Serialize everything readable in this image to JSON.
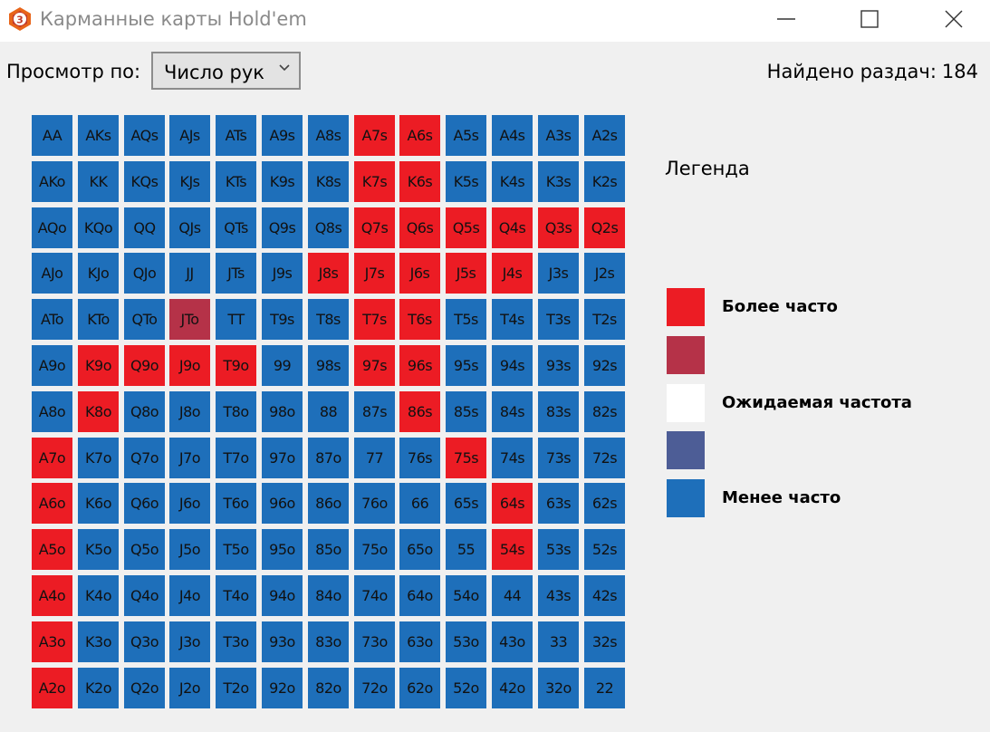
{
  "window": {
    "title": "Карманные карты Hold'em",
    "icon": "app-logo-icon",
    "controls": [
      "minimize-icon",
      "maximize-icon",
      "close-icon"
    ]
  },
  "toolbar": {
    "view_label": "Просмотр по:",
    "view_value": "Число рук",
    "found_label": "Найдено раздач:",
    "found_count": "184"
  },
  "colors": {
    "more": "#ec1c24",
    "more_mid": "#b53248",
    "expected": "#ffffff",
    "less_mid": "#4d5d96",
    "less": "#1e6fba"
  },
  "grid": {
    "rows": [
      [
        "AA",
        "AKs",
        "AQs",
        "AJs",
        "ATs",
        "A9s",
        "A8s",
        "A7s",
        "A6s",
        "A5s",
        "A4s",
        "A3s",
        "A2s"
      ],
      [
        "AKo",
        "KK",
        "KQs",
        "KJs",
        "KTs",
        "K9s",
        "K8s",
        "K7s",
        "K6s",
        "K5s",
        "K4s",
        "K3s",
        "K2s"
      ],
      [
        "AQo",
        "KQo",
        "QQ",
        "QJs",
        "QTs",
        "Q9s",
        "Q8s",
        "Q7s",
        "Q6s",
        "Q5s",
        "Q4s",
        "Q3s",
        "Q2s"
      ],
      [
        "AJo",
        "KJo",
        "QJo",
        "JJ",
        "JTs",
        "J9s",
        "J8s",
        "J7s",
        "J6s",
        "J5s",
        "J4s",
        "J3s",
        "J2s"
      ],
      [
        "ATo",
        "KTo",
        "QTo",
        "JTo",
        "TT",
        "T9s",
        "T8s",
        "T7s",
        "T6s",
        "T5s",
        "T4s",
        "T3s",
        "T2s"
      ],
      [
        "A9o",
        "K9o",
        "Q9o",
        "J9o",
        "T9o",
        "99",
        "98s",
        "97s",
        "96s",
        "95s",
        "94s",
        "93s",
        "92s"
      ],
      [
        "A8o",
        "K8o",
        "Q8o",
        "J8o",
        "T8o",
        "98o",
        "88",
        "87s",
        "86s",
        "85s",
        "84s",
        "83s",
        "82s"
      ],
      [
        "A7o",
        "K7o",
        "Q7o",
        "J7o",
        "T7o",
        "97o",
        "87o",
        "77",
        "76s",
        "75s",
        "74s",
        "73s",
        "72s"
      ],
      [
        "A6o",
        "K6o",
        "Q6o",
        "J6o",
        "T6o",
        "96o",
        "86o",
        "76o",
        "66",
        "65s",
        "64s",
        "63s",
        "62s"
      ],
      [
        "A5o",
        "K5o",
        "Q5o",
        "J5o",
        "T5o",
        "95o",
        "85o",
        "75o",
        "65o",
        "55",
        "54s",
        "53s",
        "52s"
      ],
      [
        "A4o",
        "K4o",
        "Q4o",
        "J4o",
        "T4o",
        "94o",
        "84o",
        "74o",
        "64o",
        "54o",
        "44",
        "43s",
        "42s"
      ],
      [
        "A3o",
        "K3o",
        "Q3o",
        "J3o",
        "T3o",
        "93o",
        "83o",
        "73o",
        "63o",
        "53o",
        "43o",
        "33",
        "32s"
      ],
      [
        "A2o",
        "K2o",
        "Q2o",
        "J2o",
        "T2o",
        "92o",
        "82o",
        "72o",
        "62o",
        "52o",
        "42o",
        "32o",
        "22"
      ]
    ],
    "levels": [
      [
        "less",
        "less",
        "less",
        "less",
        "less",
        "less",
        "less",
        "more",
        "more",
        "less",
        "less",
        "less",
        "less"
      ],
      [
        "less",
        "less",
        "less",
        "less",
        "less",
        "less",
        "less",
        "more",
        "more",
        "less",
        "less",
        "less",
        "less"
      ],
      [
        "less",
        "less",
        "less",
        "less",
        "less",
        "less",
        "less",
        "more",
        "more",
        "more",
        "more",
        "more",
        "more"
      ],
      [
        "less",
        "less",
        "less",
        "less",
        "less",
        "less",
        "more",
        "more",
        "more",
        "more",
        "more",
        "less",
        "less"
      ],
      [
        "less",
        "less",
        "less",
        "more_mid",
        "less",
        "less",
        "less",
        "more",
        "more",
        "less",
        "less",
        "less",
        "less"
      ],
      [
        "less",
        "more",
        "more",
        "more",
        "more",
        "less",
        "less",
        "more",
        "more",
        "less",
        "less",
        "less",
        "less"
      ],
      [
        "less",
        "more",
        "less",
        "less",
        "less",
        "less",
        "less",
        "less",
        "more",
        "less",
        "less",
        "less",
        "less"
      ],
      [
        "more",
        "less",
        "less",
        "less",
        "less",
        "less",
        "less",
        "less",
        "less",
        "more",
        "less",
        "less",
        "less"
      ],
      [
        "more",
        "less",
        "less",
        "less",
        "less",
        "less",
        "less",
        "less",
        "less",
        "less",
        "more",
        "less",
        "less"
      ],
      [
        "more",
        "less",
        "less",
        "less",
        "less",
        "less",
        "less",
        "less",
        "less",
        "less",
        "more",
        "less",
        "less"
      ],
      [
        "more",
        "less",
        "less",
        "less",
        "less",
        "less",
        "less",
        "less",
        "less",
        "less",
        "less",
        "less",
        "less"
      ],
      [
        "more",
        "less",
        "less",
        "less",
        "less",
        "less",
        "less",
        "less",
        "less",
        "less",
        "less",
        "less",
        "less"
      ],
      [
        "more",
        "less",
        "less",
        "less",
        "less",
        "less",
        "less",
        "less",
        "less",
        "less",
        "less",
        "less",
        "less"
      ]
    ]
  },
  "legend": {
    "title": "Легенда",
    "items": [
      {
        "level": "more",
        "label": "Более часто"
      },
      {
        "level": "more_mid",
        "label": ""
      },
      {
        "level": "expected",
        "label": "Ожидаемая частота"
      },
      {
        "level": "less_mid",
        "label": ""
      },
      {
        "level": "less",
        "label": "Менее часто"
      }
    ]
  }
}
